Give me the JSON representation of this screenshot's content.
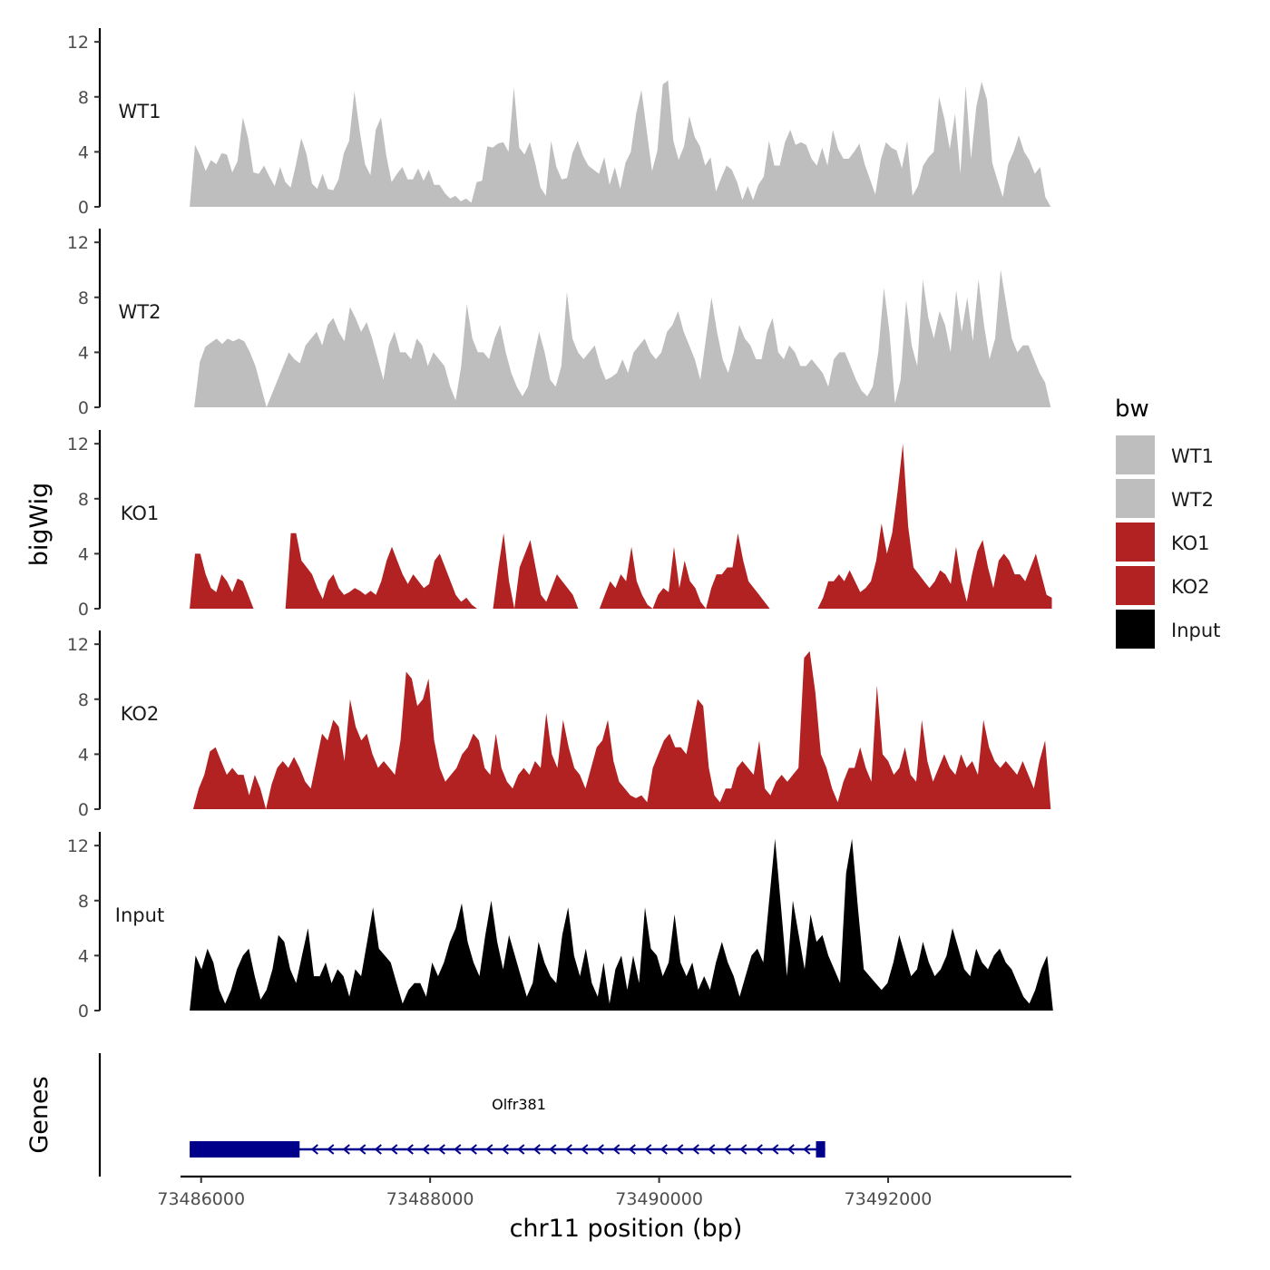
{
  "chart_data": {
    "type": "area",
    "xlabel": "chr11 position (bp)",
    "ylabel": "bigWig",
    "xlim": [
      73485820,
      73493600
    ],
    "x_ticks": [
      73486000,
      73488000,
      73490000,
      73492000
    ],
    "x_tick_labels": [
      "73486000",
      "73488000",
      "73490000",
      "73492000"
    ],
    "ylim": [
      0,
      13
    ],
    "y_ticks": [
      0,
      4,
      8,
      12
    ],
    "y_tick_labels": [
      "0",
      "4",
      "8",
      "12"
    ],
    "grid": false,
    "legend": {
      "title": "bw",
      "position": "right",
      "entries": [
        {
          "label": "WT1",
          "color": "#bebebe"
        },
        {
          "label": "WT2",
          "color": "#bebebe"
        },
        {
          "label": "KO1",
          "color": "#b22222"
        },
        {
          "label": "KO2",
          "color": "#b22222"
        },
        {
          "label": "Input",
          "color": "#000000"
        }
      ]
    },
    "tracks": [
      {
        "name": "WT1",
        "color": "#bebebe",
        "x_start": 73485900,
        "x_end": 73493420,
        "values": [
          0,
          4.5,
          3.7,
          2.6,
          3.4,
          3.1,
          3.9,
          3.8,
          2.5,
          3.3,
          6.5,
          5.0,
          2.5,
          2.4,
          3.0,
          2.2,
          1.5,
          2.9,
          1.8,
          1.4,
          3.1,
          5.0,
          3.8,
          1.7,
          1.3,
          2.4,
          1.3,
          1.2,
          2.0,
          3.9,
          4.8,
          8.4,
          5.5,
          3.1,
          2.3,
          5.6,
          6.5,
          3.7,
          1.8,
          2.4,
          2.9,
          2.0,
          2.0,
          2.8,
          1.9,
          2.7,
          1.6,
          1.6,
          1.0,
          0.6,
          0.8,
          0.4,
          0.6,
          0.3,
          1.8,
          1.9,
          4.4,
          4.3,
          4.6,
          4.7,
          4.0,
          8.7,
          4.3,
          3.8,
          4.7,
          3.2,
          1.4,
          0.8,
          4.8,
          2.9,
          2.0,
          2.1,
          3.9,
          4.8,
          3.7,
          3.0,
          2.7,
          2.4,
          3.6,
          1.6,
          2.9,
          1.3,
          3.2,
          4.0,
          6.8,
          8.5,
          5.5,
          2.6,
          4.1,
          8.9,
          9.2,
          4.8,
          3.4,
          4.4,
          6.6,
          5.1,
          4.4,
          3.0,
          3.6,
          1.1,
          2.1,
          3.0,
          2.7,
          1.8,
          0.5,
          1.5,
          0.5,
          1.6,
          2.2,
          4.8,
          3.0,
          3.0,
          4.7,
          5.6,
          4.5,
          4.7,
          4.5,
          3.5,
          3.0,
          4.3,
          3.0,
          5.6,
          4.2,
          3.5,
          3.5,
          4.0,
          4.6,
          3.1,
          2.0,
          0.9,
          3.4,
          4.7,
          4.3,
          4.1,
          2.8,
          4.8,
          0.8,
          1.5,
          3.0,
          3.6,
          4.0,
          8.0,
          6.4,
          4.2,
          6.8,
          2.4,
          8.8,
          3.5,
          7.3,
          9.1,
          7.8,
          3.2,
          1.9,
          0.7,
          3.1,
          4.0,
          5.2,
          4.0,
          3.4,
          2.4,
          2.9,
          0.7,
          0
        ]
      },
      {
        "name": "WT2",
        "color": "#bebebe",
        "x_start": 73485940,
        "x_end": 73493420,
        "values": [
          0,
          3.3,
          4.4,
          4.7,
          5.0,
          4.6,
          5.0,
          4.8,
          5.0,
          4.8,
          4.0,
          3.0,
          1.5,
          0,
          1.0,
          2.0,
          3.0,
          4.0,
          3.5,
          3.2,
          4.5,
          5.0,
          5.5,
          4.5,
          6.0,
          6.5,
          5.5,
          4.8,
          7.3,
          6.5,
          5.5,
          6.2,
          5.0,
          3.5,
          2.0,
          4.5,
          5.5,
          4.0,
          4.0,
          3.5,
          5.0,
          4.5,
          3.0,
          4.0,
          3.5,
          3.0,
          1.5,
          0.5,
          3.0,
          7.5,
          5.0,
          4.0,
          4.0,
          3.5,
          5.0,
          6.0,
          4.0,
          2.5,
          1.5,
          0.8,
          1.5,
          3.5,
          5.5,
          4.0,
          2.0,
          1.5,
          3.0,
          8.4,
          5.0,
          4.0,
          3.5,
          4.0,
          4.5,
          3.0,
          2.0,
          2.2,
          2.5,
          3.5,
          2.5,
          4.0,
          4.5,
          5.0,
          4.0,
          3.5,
          4.0,
          5.5,
          6.0,
          7.0,
          5.5,
          4.5,
          3.5,
          2.0,
          5.0,
          8.0,
          5.5,
          3.5,
          2.5,
          4.0,
          6.0,
          5.0,
          4.5,
          3.5,
          3.5,
          5.5,
          6.5,
          4.0,
          3.5,
          4.5,
          4.0,
          3.0,
          3.0,
          3.5,
          3.0,
          2.5,
          1.5,
          3.5,
          4.0,
          4.0,
          3.0,
          2.0,
          1.2,
          0.8,
          1.5,
          4.0,
          8.7,
          5.5,
          0.3,
          2.0,
          7.8,
          4.5,
          3.0,
          9.3,
          6.5,
          5.0,
          7.0,
          6.0,
          4.0,
          8.5,
          5.5,
          8.0,
          4.8,
          9.3,
          6.0,
          3.5,
          5.0,
          10.0,
          7.5,
          5.0,
          4.0,
          4.5,
          4.5,
          3.5,
          2.5,
          1.8,
          0
        ]
      },
      {
        "name": "KO1",
        "color": "#b22222",
        "x_start": 73485900,
        "x_end": 73493430,
        "values": [
          0,
          4.0,
          4.0,
          2.5,
          1.5,
          1.2,
          2.5,
          2.0,
          1.2,
          2.2,
          2.0,
          1.0,
          0,
          null,
          null,
          null,
          null,
          null,
          0,
          5.5,
          5.5,
          3.5,
          3.0,
          2.5,
          1.5,
          0.7,
          2.0,
          2.5,
          1.5,
          1.0,
          1.2,
          1.5,
          1.3,
          1.0,
          1.3,
          1.0,
          2.0,
          3.5,
          4.5,
          3.5,
          2.5,
          1.8,
          2.5,
          2.0,
          1.5,
          1.8,
          3.5,
          4.0,
          3.0,
          2.0,
          1.0,
          0.5,
          0.8,
          0.3,
          0,
          null,
          null,
          0,
          3.0,
          5.5,
          2.0,
          0,
          3.0,
          4.0,
          5.0,
          3.0,
          1.0,
          0.5,
          1.5,
          2.5,
          2.0,
          1.5,
          1.0,
          0,
          null,
          null,
          null,
          0,
          1.0,
          2.0,
          1.5,
          2.5,
          2.0,
          4.5,
          2.0,
          1.0,
          0.3,
          0,
          1.0,
          1.5,
          1.2,
          4.5,
          1.5,
          3.5,
          2.0,
          1.5,
          0.5,
          0,
          1.5,
          2.5,
          2.5,
          3.0,
          3.0,
          5.5,
          3.5,
          2.0,
          1.5,
          1.0,
          0.5,
          0,
          null,
          null,
          null,
          null,
          null,
          null,
          null,
          null,
          0,
          0.8,
          2.0,
          2.0,
          2.5,
          2.0,
          2.8,
          2.0,
          1.2,
          1.5,
          2.0,
          3.5,
          6.2,
          4.0,
          5.5,
          8.5,
          12.0,
          6.0,
          3.0,
          2.5,
          2.0,
          1.5,
          2.0,
          2.8,
          2.5,
          1.8,
          4.5,
          2.0,
          0.5,
          2.5,
          4.2,
          5.0,
          3.0,
          1.5,
          3.5,
          4.0,
          3.5,
          2.5,
          2.5,
          2.0,
          3.0,
          4.0,
          2.5,
          1.0,
          0.8
        ]
      },
      {
        "name": "KO2",
        "color": "#b22222",
        "x_start": 73485930,
        "x_end": 73493420,
        "values": [
          0,
          1.5,
          2.5,
          4.2,
          4.5,
          3.5,
          2.5,
          3.0,
          2.5,
          2.5,
          1.0,
          2.5,
          1.5,
          0,
          1.8,
          3.0,
          3.5,
          3.0,
          3.8,
          3.0,
          2.0,
          1.5,
          3.5,
          5.5,
          5.0,
          6.5,
          6.0,
          3.5,
          8.0,
          6.0,
          5.0,
          5.5,
          4.0,
          3.0,
          3.5,
          3.0,
          2.5,
          5.0,
          10.0,
          9.5,
          7.5,
          8.0,
          9.5,
          5.0,
          3.0,
          2.0,
          2.5,
          3.0,
          4.0,
          4.5,
          5.5,
          5.0,
          3.0,
          2.5,
          5.5,
          3.0,
          2.0,
          1.5,
          2.5,
          3.0,
          2.5,
          3.5,
          3.0,
          7.0,
          4.0,
          3.0,
          6.5,
          4.5,
          3.0,
          2.5,
          1.5,
          3.0,
          4.5,
          5.0,
          6.5,
          3.5,
          2.0,
          1.5,
          1.0,
          0.8,
          1.0,
          0.5,
          3.0,
          4.0,
          5.0,
          5.5,
          4.5,
          4.5,
          4.0,
          6.0,
          8.0,
          7.5,
          3.0,
          1.0,
          0.5,
          1.5,
          1.5,
          3.0,
          3.5,
          3.0,
          2.5,
          5.0,
          1.5,
          1.0,
          2.0,
          2.5,
          2.0,
          2.5,
          3.0,
          11.0,
          11.5,
          8.5,
          4.0,
          3.0,
          1.5,
          0.5,
          2.0,
          3.0,
          3.0,
          4.5,
          3.0,
          2.0,
          9.0,
          4.0,
          3.5,
          2.5,
          3.0,
          4.5,
          2.5,
          2.0,
          6.5,
          3.5,
          2.0,
          3.0,
          4.0,
          3.0,
          2.5,
          4.0,
          3.0,
          3.5,
          2.5,
          6.5,
          4.5,
          3.5,
          3.0,
          3.5,
          3.0,
          2.5,
          3.5,
          2.5,
          1.5,
          3.5,
          5.0,
          0
        ]
      },
      {
        "name": "Input",
        "color": "#000000",
        "x_start": 73485900,
        "x_end": 73493440,
        "values": [
          0,
          4.0,
          3.0,
          4.5,
          3.5,
          1.5,
          0.5,
          1.5,
          3.0,
          4.0,
          4.5,
          2.5,
          0.8,
          1.5,
          3.0,
          5.5,
          5.0,
          3.0,
          2.0,
          4.0,
          6.0,
          2.5,
          2.5,
          3.5,
          2.0,
          3.0,
          2.5,
          1.0,
          3.0,
          2.5,
          5.0,
          7.5,
          4.5,
          4.0,
          3.5,
          2.0,
          0.5,
          1.5,
          2.0,
          2.0,
          1.0,
          3.5,
          2.5,
          3.5,
          5.0,
          6.0,
          7.8,
          5.0,
          3.5,
          2.5,
          5.5,
          8.0,
          5.0,
          3.0,
          5.5,
          4.0,
          2.5,
          1.0,
          2.0,
          5.0,
          3.5,
          2.5,
          2.0,
          5.5,
          7.5,
          4.0,
          2.5,
          4.5,
          2.0,
          1.0,
          3.5,
          0.5,
          3.0,
          4.0,
          1.5,
          4.0,
          2.0,
          7.5,
          4.5,
          4.0,
          2.5,
          3.5,
          7.0,
          3.5,
          2.5,
          3.5,
          1.5,
          2.5,
          1.5,
          3.5,
          5.0,
          3.5,
          2.5,
          1.0,
          2.5,
          4.0,
          4.5,
          3.5,
          8.0,
          12.5,
          7.5,
          2.5,
          8.0,
          5.5,
          3.0,
          7.0,
          5.0,
          5.5,
          4.0,
          3.0,
          2.0,
          10.0,
          12.5,
          7.5,
          3.0,
          2.5,
          2.0,
          1.5,
          2.0,
          3.5,
          5.5,
          4.0,
          2.5,
          3.0,
          5.0,
          3.5,
          2.5,
          3.0,
          4.0,
          6.0,
          4.5,
          3.0,
          2.5,
          4.5,
          3.5,
          3.0,
          4.0,
          4.5,
          3.5,
          3.0,
          2.0,
          1.0,
          0.5,
          1.5,
          3.0,
          4.0,
          0
        ]
      }
    ],
    "gene_track": {
      "label": "Genes",
      "gene_name": "Olfr381",
      "color": "#00008b",
      "strand": "-",
      "start": 73485900,
      "end": 73491450,
      "exons": [
        [
          73485900,
          73486860
        ],
        [
          73491370,
          73491450
        ]
      ]
    }
  }
}
